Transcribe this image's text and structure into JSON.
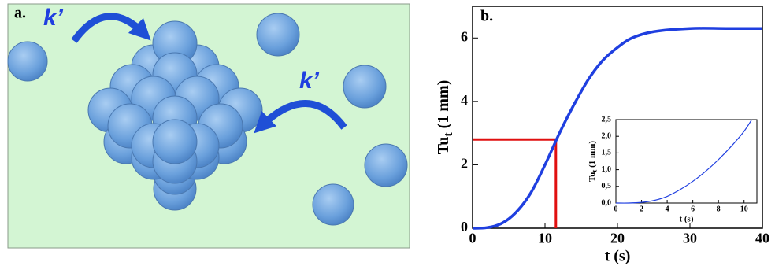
{
  "diagram": {
    "label": "a.",
    "rate_labels": [
      "k’",
      "k’"
    ]
  },
  "chart_data": [
    {
      "type": "line",
      "label": "b.",
      "xlabel": "t (s)",
      "ylabel": {
        "main": "Tu",
        "sub": "t",
        "rest": " (1 mm)"
      },
      "x": [
        0,
        2,
        4,
        6,
        8,
        10,
        12,
        14,
        16,
        18,
        20,
        22,
        25,
        30,
        35,
        40
      ],
      "series": [
        {
          "color": "#1f3fe0",
          "values": [
            0,
            0.02,
            0.15,
            0.5,
            1.1,
            2.0,
            3.0,
            3.9,
            4.7,
            5.3,
            5.7,
            6.0,
            6.2,
            6.3,
            6.3,
            6.3
          ]
        }
      ],
      "marker": {
        "x": 11.5,
        "y": 2.8,
        "color": "#e01010"
      },
      "xlim": [
        0,
        40
      ],
      "xticks": [
        0,
        10,
        20,
        30,
        40
      ],
      "ylim": [
        0,
        7
      ],
      "yticks": [
        0,
        2,
        4,
        6
      ]
    },
    {
      "type": "line",
      "inset": true,
      "xlabel": "t (s)",
      "ylabel": {
        "main": "Tu",
        "sub": "t",
        "rest": " (1 mm)"
      },
      "x": [
        0,
        1,
        2,
        3,
        4,
        5,
        6,
        7,
        8,
        9,
        10,
        10.6
      ],
      "series": [
        {
          "color": "#1f3fe0",
          "values": [
            0,
            0,
            0.02,
            0.08,
            0.2,
            0.4,
            0.65,
            0.95,
            1.3,
            1.7,
            2.15,
            2.5
          ]
        }
      ],
      "xlim": [
        0,
        11
      ],
      "xticks": [
        0,
        2,
        4,
        6,
        8,
        10
      ],
      "ylim": [
        0,
        2.5
      ],
      "yticks": [
        {
          "value": 0,
          "label": "0,0"
        },
        {
          "value": 0.5,
          "label": "0,5"
        },
        {
          "value": 1,
          "label": "1,0"
        },
        {
          "value": 1.5,
          "label": "1,5"
        },
        {
          "value": 2,
          "label": "2,0"
        },
        {
          "value": 2.5,
          "label": "2,5"
        }
      ]
    }
  ]
}
